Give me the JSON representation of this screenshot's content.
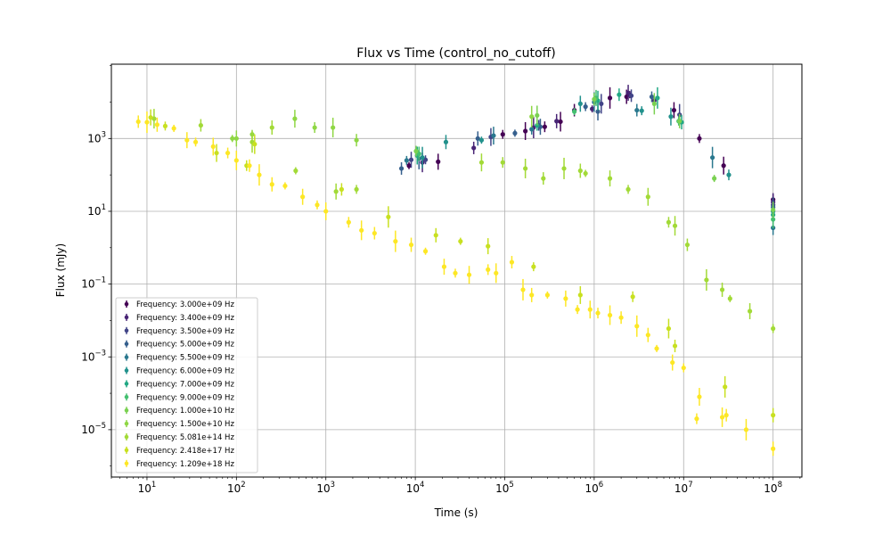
{
  "chart_data": {
    "type": "scatter",
    "title": "Flux vs Time (control_no_cutoff)",
    "xlabel": "Time (s)",
    "ylabel": "Flux (mJy)",
    "xscale": "log",
    "yscale": "log",
    "xlim": [
      4,
      210000000.0
    ],
    "ylim": [
      5e-07,
      110000.0
    ],
    "grid": true,
    "legend_position": "lower-left",
    "x_ticks": [
      {
        "value": 10,
        "base": "10",
        "exp": "1"
      },
      {
        "value": 100,
        "base": "10",
        "exp": "2"
      },
      {
        "value": 1000,
        "base": "10",
        "exp": "3"
      },
      {
        "value": 10000,
        "base": "10",
        "exp": "4"
      },
      {
        "value": 100000,
        "base": "10",
        "exp": "5"
      },
      {
        "value": 1000000,
        "base": "10",
        "exp": "6"
      },
      {
        "value": 10000000,
        "base": "10",
        "exp": "7"
      },
      {
        "value": 100000000,
        "base": "10",
        "exp": "8"
      }
    ],
    "y_ticks": [
      {
        "value": 1e-05,
        "base": "10",
        "exp": "−5"
      },
      {
        "value": 0.001,
        "base": "10",
        "exp": "−3"
      },
      {
        "value": 0.1,
        "base": "10",
        "exp": "−1"
      },
      {
        "value": 10,
        "base": "10",
        "exp": "1"
      },
      {
        "value": 1000,
        "base": "10",
        "exp": "3"
      }
    ],
    "series": [
      {
        "name": "Frequency: 3.000e+09 Hz",
        "color": "#440154",
        "points": [
          [
            8500,
            180
          ],
          [
            18000,
            230
          ],
          [
            95000,
            1300
          ],
          [
            170000,
            1600
          ],
          [
            280000,
            2100
          ],
          [
            420000,
            2900
          ],
          [
            600000,
            6000
          ],
          [
            1500000,
            13000
          ],
          [
            2300000,
            14000
          ],
          [
            2500000,
            16000
          ],
          [
            7800000,
            6000
          ],
          [
            15000000,
            1000
          ],
          [
            28000000,
            180
          ],
          [
            100000000,
            21
          ]
        ]
      },
      {
        "name": "Frequency: 3.400e+09 Hz",
        "color": "#482475",
        "points": [
          [
            12000,
            220
          ],
          [
            45000,
            550
          ],
          [
            210000,
            2000
          ],
          [
            380000,
            3000
          ],
          [
            950000,
            6500
          ],
          [
            2400000,
            18000
          ],
          [
            4700000,
            11000
          ],
          [
            100000000,
            18
          ]
        ]
      },
      {
        "name": "Frequency: 3.500e+09 Hz",
        "color": "#414487",
        "points": [
          [
            9000,
            260
          ],
          [
            13000,
            260
          ],
          [
            70000,
            1100
          ],
          [
            240000,
            2300
          ],
          [
            1200000,
            9000
          ],
          [
            2600000,
            15000
          ],
          [
            9000000,
            4500
          ],
          [
            100000000,
            15
          ]
        ]
      },
      {
        "name": "Frequency: 5.000e+09 Hz",
        "color": "#355f8d",
        "points": [
          [
            7000,
            150
          ],
          [
            11000,
            280
          ],
          [
            50000,
            1000
          ],
          [
            130000,
            1400
          ],
          [
            250000,
            2100
          ],
          [
            800000,
            7500
          ],
          [
            1100000,
            5500
          ],
          [
            4400000,
            14000
          ],
          [
            100000000,
            13
          ]
        ]
      },
      {
        "name": "Frequency: 5.500e+09 Hz",
        "color": "#2a788e",
        "points": [
          [
            8000,
            250
          ],
          [
            75000,
            1200
          ],
          [
            200000,
            1800
          ],
          [
            1000000,
            10000
          ],
          [
            3000000,
            6000
          ],
          [
            21000000,
            300
          ],
          [
            100000000,
            3.5
          ]
        ]
      },
      {
        "name": "Frequency: 6.000e+09 Hz",
        "color": "#21918c",
        "points": [
          [
            12000,
            300
          ],
          [
            22000,
            800
          ],
          [
            55000,
            900
          ],
          [
            700000,
            9000
          ],
          [
            3400000,
            5800
          ],
          [
            7200000,
            4000
          ],
          [
            32000000,
            100
          ],
          [
            100000000,
            10
          ]
        ]
      },
      {
        "name": "Frequency: 7.000e+09 Hz",
        "color": "#22a884",
        "points": [
          [
            10500,
            340
          ],
          [
            230000,
            2300
          ],
          [
            1100000,
            11000
          ],
          [
            1900000,
            16000
          ],
          [
            5100000,
            13000
          ],
          [
            9500000,
            2800
          ],
          [
            100000000,
            8
          ]
        ]
      },
      {
        "name": "Frequency: 9.000e+09 Hz",
        "color": "#44bf70",
        "points": [
          [
            11000,
            380
          ],
          [
            600000,
            5500
          ],
          [
            1050000,
            13000
          ],
          [
            8800000,
            3000
          ],
          [
            100000000,
            6
          ]
        ]
      },
      {
        "name": "Frequency: 1.000e+10 Hz",
        "color": "#7ad151",
        "points": [
          [
            10200,
            450
          ],
          [
            230000,
            4300
          ],
          [
            1000000,
            12000
          ],
          [
            4700000,
            9000
          ],
          [
            9000000,
            3000
          ],
          [
            22000000,
            80
          ],
          [
            100000000,
            11
          ]
        ]
      },
      {
        "name": "Frequency: 1.500e+10 Hz",
        "color": "#8fd744",
        "points": [
          [
            90,
            1000
          ],
          [
            100,
            1000
          ],
          [
            150,
            1300
          ],
          [
            450,
            3500
          ],
          [
            750,
            2000
          ],
          [
            1200,
            2000
          ],
          [
            2200,
            900
          ],
          [
            200000,
            4000
          ]
        ]
      },
      {
        "name": "Frequency: 5.081e+14 Hz",
        "color": "#a2da37",
        "points": [
          [
            12,
            3500
          ],
          [
            40,
            2300
          ],
          [
            150,
            800
          ],
          [
            250,
            2000
          ],
          [
            460,
            130
          ],
          [
            1300,
            35
          ],
          [
            2200,
            40
          ],
          [
            55000,
            220
          ],
          [
            95000,
            220
          ],
          [
            170000,
            150
          ],
          [
            270000,
            80
          ],
          [
            460000,
            150
          ],
          [
            700000,
            130
          ],
          [
            800000,
            110
          ],
          [
            1500000,
            80
          ],
          [
            2400000,
            40
          ],
          [
            4000000,
            25
          ],
          [
            6800000,
            5
          ],
          [
            8000000,
            4
          ],
          [
            11000000,
            1.2
          ],
          [
            18000000,
            0.13
          ],
          [
            27000000,
            0.07
          ],
          [
            33000000,
            0.04
          ],
          [
            55000000,
            0.018
          ],
          [
            100000000,
            0.006
          ]
        ]
      },
      {
        "name": "Frequency: 2.418e+17 Hz",
        "color": "#c8e020",
        "points": [
          [
            11,
            3800
          ],
          [
            16,
            2200
          ],
          [
            60,
            400
          ],
          [
            130,
            180
          ],
          [
            160,
            700
          ],
          [
            1500,
            40
          ],
          [
            5000,
            7
          ],
          [
            17000,
            2.2
          ],
          [
            32000,
            1.5
          ],
          [
            65000,
            1.1
          ],
          [
            210000,
            0.3
          ],
          [
            700000,
            0.05
          ],
          [
            2700000,
            0.045
          ],
          [
            6800000,
            0.006
          ],
          [
            8000000,
            0.002
          ],
          [
            29000000,
            0.00015
          ],
          [
            100000000,
            2.5e-05
          ]
        ]
      },
      {
        "name": "Frequency: 1.209e+18 Hz",
        "color": "#fde725",
        "points": [
          [
            8,
            2900
          ],
          [
            10,
            2800
          ],
          [
            13,
            2400
          ],
          [
            20,
            1900
          ],
          [
            28,
            900
          ],
          [
            35,
            800
          ],
          [
            55,
            600
          ],
          [
            80,
            400
          ],
          [
            100,
            250
          ],
          [
            140,
            180
          ],
          [
            180,
            100
          ],
          [
            250,
            55
          ],
          [
            350,
            50
          ],
          [
            550,
            25
          ],
          [
            800,
            15
          ],
          [
            1000,
            10
          ],
          [
            1800,
            5
          ],
          [
            2500,
            3
          ],
          [
            3500,
            2.5
          ],
          [
            6000,
            1.5
          ],
          [
            9000,
            1.2
          ],
          [
            13000,
            0.8
          ],
          [
            21000,
            0.3
          ],
          [
            28000,
            0.2
          ],
          [
            40000,
            0.18
          ],
          [
            65000,
            0.25
          ],
          [
            80000,
            0.2
          ],
          [
            120000,
            0.4
          ],
          [
            160000,
            0.07
          ],
          [
            200000,
            0.05
          ],
          [
            300000,
            0.05
          ],
          [
            480000,
            0.04
          ],
          [
            650000,
            0.02
          ],
          [
            900000,
            0.02
          ],
          [
            1100000,
            0.016
          ],
          [
            1500000,
            0.014
          ],
          [
            2000000,
            0.012
          ],
          [
            3000000,
            0.007
          ],
          [
            4000000,
            0.004
          ],
          [
            5000000,
            0.0017
          ],
          [
            7500000,
            0.0007
          ],
          [
            10000000,
            0.0005
          ],
          [
            15000000,
            8e-05
          ],
          [
            14000000,
            2e-05
          ],
          [
            27000000,
            2.2e-05
          ],
          [
            30000000,
            2.5e-05
          ],
          [
            50000000,
            1e-05
          ],
          [
            100000000,
            3e-06
          ]
        ]
      }
    ]
  }
}
